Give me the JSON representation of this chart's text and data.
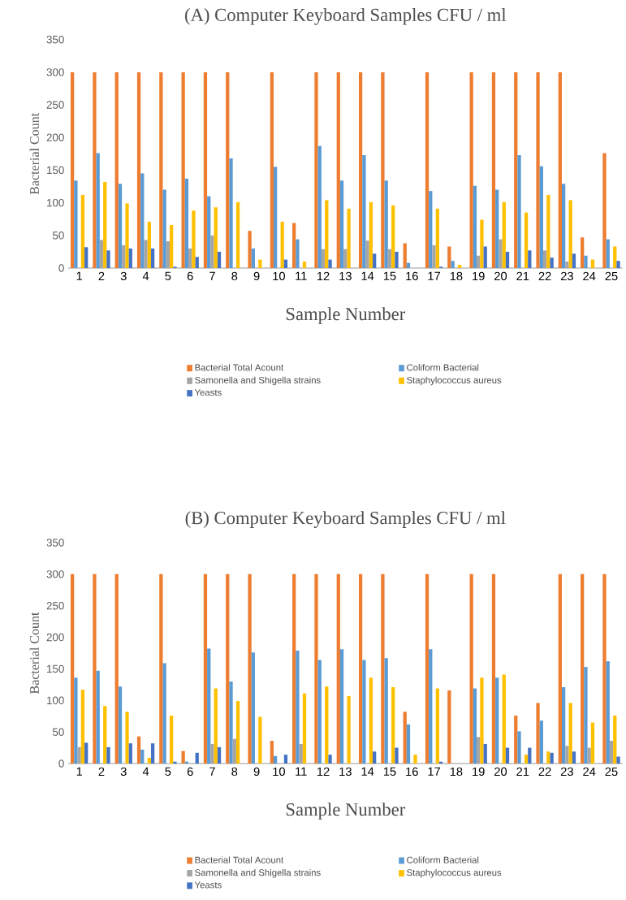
{
  "chart_data": [
    {
      "type": "bar",
      "title": "(A)   Computer Keyboard Samples CFU / ml",
      "xlabel": "Sample Number",
      "ylabel": "Bacterial Count",
      "categories": [
        "1",
        "2",
        "3",
        "4",
        "5",
        "6",
        "7",
        "8",
        "9",
        "10",
        "11",
        "12",
        "13",
        "14",
        "15",
        "16",
        "17",
        "18",
        "19",
        "20",
        "21",
        "22",
        "23",
        "24",
        "25"
      ],
      "ylim": [
        0,
        350
      ],
      "yticks": [
        0,
        50,
        100,
        150,
        200,
        250,
        300,
        350
      ],
      "legend": "bottom",
      "series": [
        {
          "name": "Bacterial Total Acount",
          "color": "#ed7d31",
          "values": [
            300,
            300,
            300,
            300,
            300,
            300,
            300,
            300,
            57,
            300,
            69,
            300,
            300,
            300,
            300,
            38,
            300,
            33,
            300,
            300,
            300,
            300,
            300,
            47,
            176
          ]
        },
        {
          "name": "Coliform Bacterial",
          "color": "#5b9bd5",
          "values": [
            134,
            176,
            129,
            145,
            120,
            137,
            110,
            168,
            30,
            155,
            44,
            187,
            134,
            173,
            134,
            8,
            118,
            11,
            126,
            120,
            173,
            156,
            129,
            19,
            44
          ]
        },
        {
          "name": "Samonella and Shigella strains",
          "color": "#a5a5a5",
          "values": [
            null,
            43,
            35,
            43,
            41,
            30,
            50,
            null,
            null,
            null,
            null,
            29,
            29,
            42,
            29,
            null,
            35,
            null,
            19,
            44,
            null,
            27,
            10,
            null,
            null
          ]
        },
        {
          "name": "Staphylococcus aureus",
          "color": "#ffc000",
          "values": [
            112,
            132,
            99,
            71,
            66,
            88,
            93,
            101,
            13,
            71,
            10,
            104,
            91,
            101,
            96,
            null,
            91,
            5,
            74,
            101,
            85,
            112,
            104,
            13,
            33
          ]
        },
        {
          "name": "Yeasts",
          "color": "#4472c4",
          "values": [
            32,
            27,
            30,
            30,
            2,
            17,
            25,
            null,
            null,
            13,
            null,
            13,
            null,
            22,
            25,
            null,
            2,
            null,
            33,
            25,
            27,
            16,
            22,
            null,
            11
          ]
        }
      ]
    },
    {
      "type": "bar",
      "title": "(B)   Computer Keyboard Samples CFU / ml",
      "xlabel": "Sample Number",
      "ylabel": "Bacterial Count",
      "categories": [
        "1",
        "2",
        "3",
        "4",
        "5",
        "6",
        "7",
        "8",
        "9",
        "10",
        "11",
        "12",
        "13",
        "14",
        "15",
        "16",
        "17",
        "18",
        "19",
        "20",
        "21",
        "22",
        "23",
        "24",
        "25"
      ],
      "ylim": [
        0,
        350
      ],
      "yticks": [
        0,
        50,
        100,
        150,
        200,
        250,
        300,
        350
      ],
      "legend": "bottom",
      "series": [
        {
          "name": "Bacterial Total Acount",
          "color": "#ed7d31",
          "values": [
            300,
            300,
            300,
            43,
            300,
            20,
            300,
            300,
            300,
            36,
            300,
            300,
            300,
            300,
            300,
            82,
            300,
            116,
            300,
            300,
            76,
            96,
            300,
            300,
            300
          ]
        },
        {
          "name": "Coliform Bacterial",
          "color": "#5b9bd5",
          "values": [
            136,
            147,
            122,
            22,
            159,
            3,
            182,
            130,
            176,
            12,
            179,
            164,
            181,
            164,
            167,
            62,
            181,
            null,
            119,
            136,
            51,
            68,
            121,
            153,
            162
          ]
        },
        {
          "name": "Samonella and Shigella strains",
          "color": "#a5a5a5",
          "values": [
            26,
            null,
            null,
            null,
            null,
            null,
            31,
            39,
            null,
            null,
            31,
            null,
            null,
            null,
            null,
            null,
            null,
            null,
            42,
            null,
            null,
            null,
            28,
            25,
            36
          ]
        },
        {
          "name": "Staphylococcus aureus",
          "color": "#ffc000",
          "values": [
            117,
            91,
            82,
            9,
            76,
            null,
            119,
            99,
            74,
            null,
            111,
            122,
            107,
            136,
            121,
            14,
            119,
            null,
            136,
            141,
            14,
            19,
            96,
            65,
            76
          ]
        },
        {
          "name": "Yeasts",
          "color": "#4472c4",
          "values": [
            33,
            26,
            32,
            32,
            3,
            17,
            26,
            null,
            null,
            14,
            null,
            14,
            null,
            19,
            25,
            null,
            3,
            null,
            31,
            25,
            25,
            17,
            19,
            null,
            11
          ]
        }
      ]
    }
  ]
}
